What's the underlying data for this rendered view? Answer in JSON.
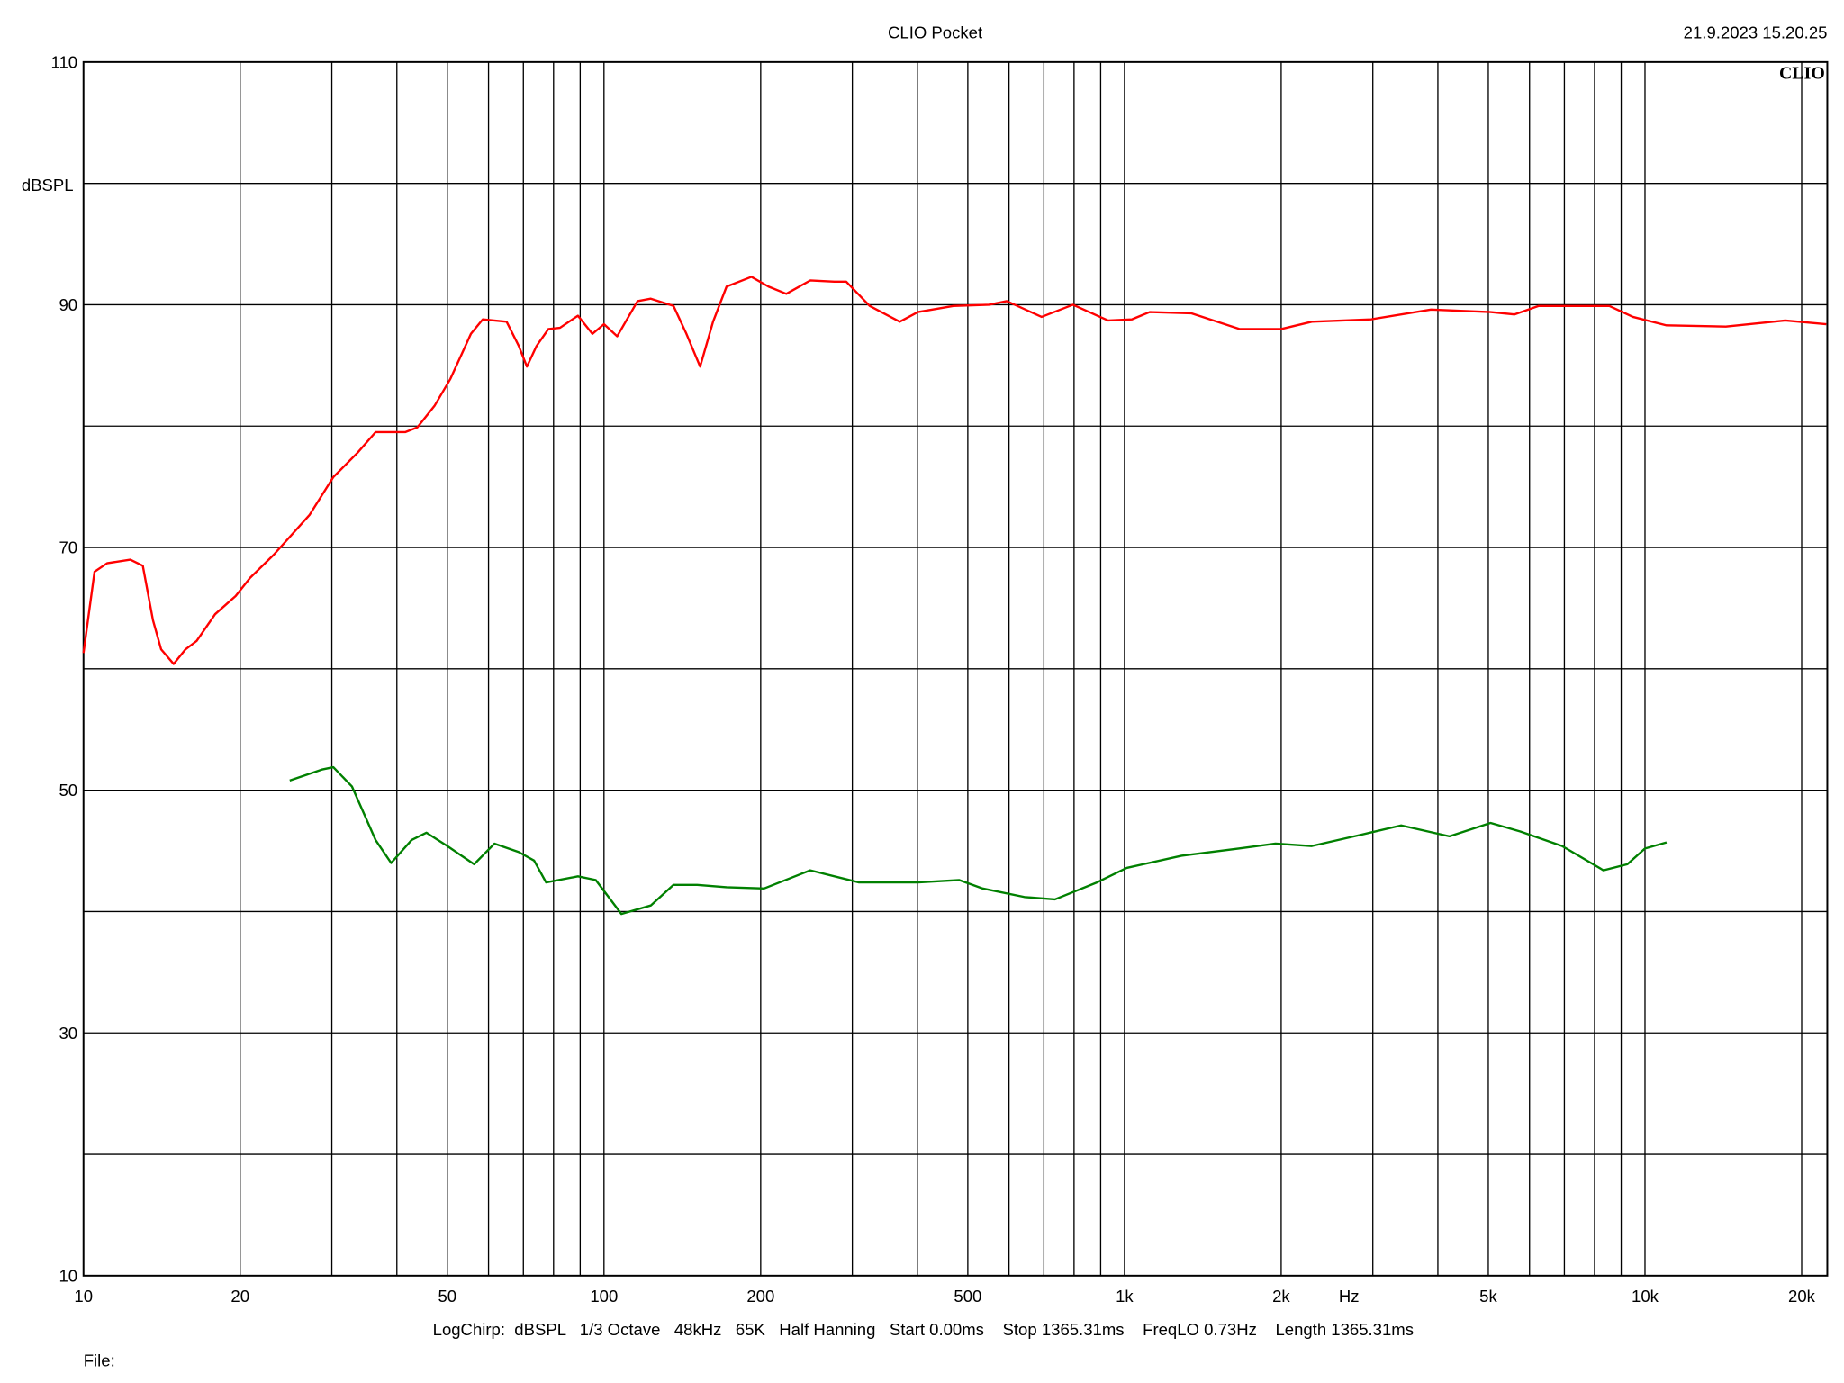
{
  "chart_data": {
    "type": "line",
    "title": "CLIO Pocket",
    "timestamp": "21.9.2023 15.20.25",
    "logo": "CLIO",
    "y_unit": "dBSPL",
    "x_unit": "Hz",
    "footer": "LogChirp:  dBSPL   1/3 Octave   48kHz   65K   Half Hanning   Start 0.00ms    Stop 1365.31ms    FreqLO 0.73Hz    Length 1365.31ms",
    "file_label": "File:",
    "xscale": "log",
    "xlim": [
      10,
      22400
    ],
    "ylim": [
      10,
      110
    ],
    "xticks": [
      10,
      20,
      50,
      100,
      200,
      500,
      {
        "value": 1000,
        "label": "1k"
      },
      {
        "value": 2000,
        "label": "2k"
      },
      {
        "value": 5000,
        "label": "5k"
      },
      {
        "value": 10000,
        "label": "10k"
      },
      {
        "value": 20000,
        "label": "20k"
      }
    ],
    "xgrid": [
      10,
      20,
      30,
      40,
      50,
      60,
      70,
      80,
      90,
      100,
      200,
      300,
      400,
      500,
      600,
      700,
      800,
      900,
      1000,
      2000,
      3000,
      4000,
      5000,
      6000,
      7000,
      8000,
      9000,
      10000,
      20000
    ],
    "yticks": [
      10,
      30,
      50,
      70,
      90,
      110
    ],
    "ygrid": [
      10,
      20,
      30,
      40,
      50,
      60,
      70,
      80,
      90,
      100,
      110
    ],
    "grid": true,
    "series": [
      {
        "color": "#ff0000",
        "x": [
          10,
          10.5,
          11.1,
          12.3,
          13,
          13.6,
          14.1,
          14.9,
          15.7,
          16.5,
          17.9,
          19.6,
          20.9,
          23.2,
          27.2,
          30.2,
          33.6,
          36.4,
          41.5,
          43.8,
          47.3,
          50.7,
          55.5,
          58.5,
          65,
          68.6,
          71.1,
          74.2,
          78.2,
          82.3,
          89.1,
          95,
          100,
          106,
          116,
          123,
          136,
          144,
          153,
          162,
          172,
          192,
          207,
          224,
          249,
          277,
          292,
          324,
          370,
          401,
          469,
          549,
          594,
          693,
          796,
          930,
          1034,
          1118,
          1343,
          1663,
          2000,
          2290,
          2980,
          3880,
          5050,
          5610,
          6250,
          8540,
          9480,
          11000,
          14300,
          18600,
          22300
        ],
        "values": [
          61.3,
          68,
          68.7,
          69,
          68.5,
          64,
          61.6,
          60.4,
          61.6,
          62.3,
          64.5,
          66,
          67.5,
          69.4,
          72.7,
          75.8,
          77.8,
          79.5,
          79.5,
          79.9,
          81.7,
          83.9,
          87.6,
          88.8,
          88.6,
          86.6,
          84.9,
          86.6,
          88,
          88.1,
          89.1,
          87.6,
          88.4,
          87.4,
          90.3,
          90.5,
          89.9,
          87.6,
          84.9,
          88.6,
          91.5,
          92.3,
          91.5,
          90.9,
          92,
          91.9,
          91.9,
          89.9,
          88.6,
          89.4,
          89.9,
          90,
          90.3,
          89,
          90,
          88.7,
          88.8,
          89.4,
          89.3,
          88,
          88,
          88.6,
          88.8,
          89.6,
          89.4,
          89.2,
          89.9,
          89.9,
          89,
          88.3,
          88.2,
          88.7,
          88.4
        ]
      },
      {
        "color": "#008000",
        "x": [
          24.9,
          28.7,
          30.2,
          32.8,
          36.4,
          39,
          42.7,
          45.6,
          50,
          56.3,
          61.6,
          68.6,
          73.4,
          77.4,
          89.1,
          96.4,
          108,
          123,
          136,
          151,
          172,
          203,
          249,
          309,
          345,
          401,
          481,
          534,
          642,
          735,
          885,
          1010,
          1287,
          1663,
          1950,
          2290,
          2830,
          3400,
          4210,
          5050,
          5760,
          6930,
          8320,
          9250,
          10000,
          11000
        ],
        "values": [
          50.8,
          51.7,
          51.9,
          50.3,
          45.9,
          44,
          45.9,
          46.5,
          45.4,
          43.9,
          45.6,
          44.9,
          44.2,
          42.4,
          42.9,
          42.6,
          39.8,
          40.5,
          42.2,
          42.2,
          42,
          41.9,
          43.4,
          42.4,
          42.4,
          42.4,
          42.6,
          41.9,
          41.2,
          41,
          42.4,
          43.6,
          44.6,
          45.2,
          45.6,
          45.4,
          46.3,
          47.1,
          46.2,
          47.3,
          46.6,
          45.4,
          43.4,
          43.9,
          45.2,
          45.7
        ]
      }
    ]
  }
}
